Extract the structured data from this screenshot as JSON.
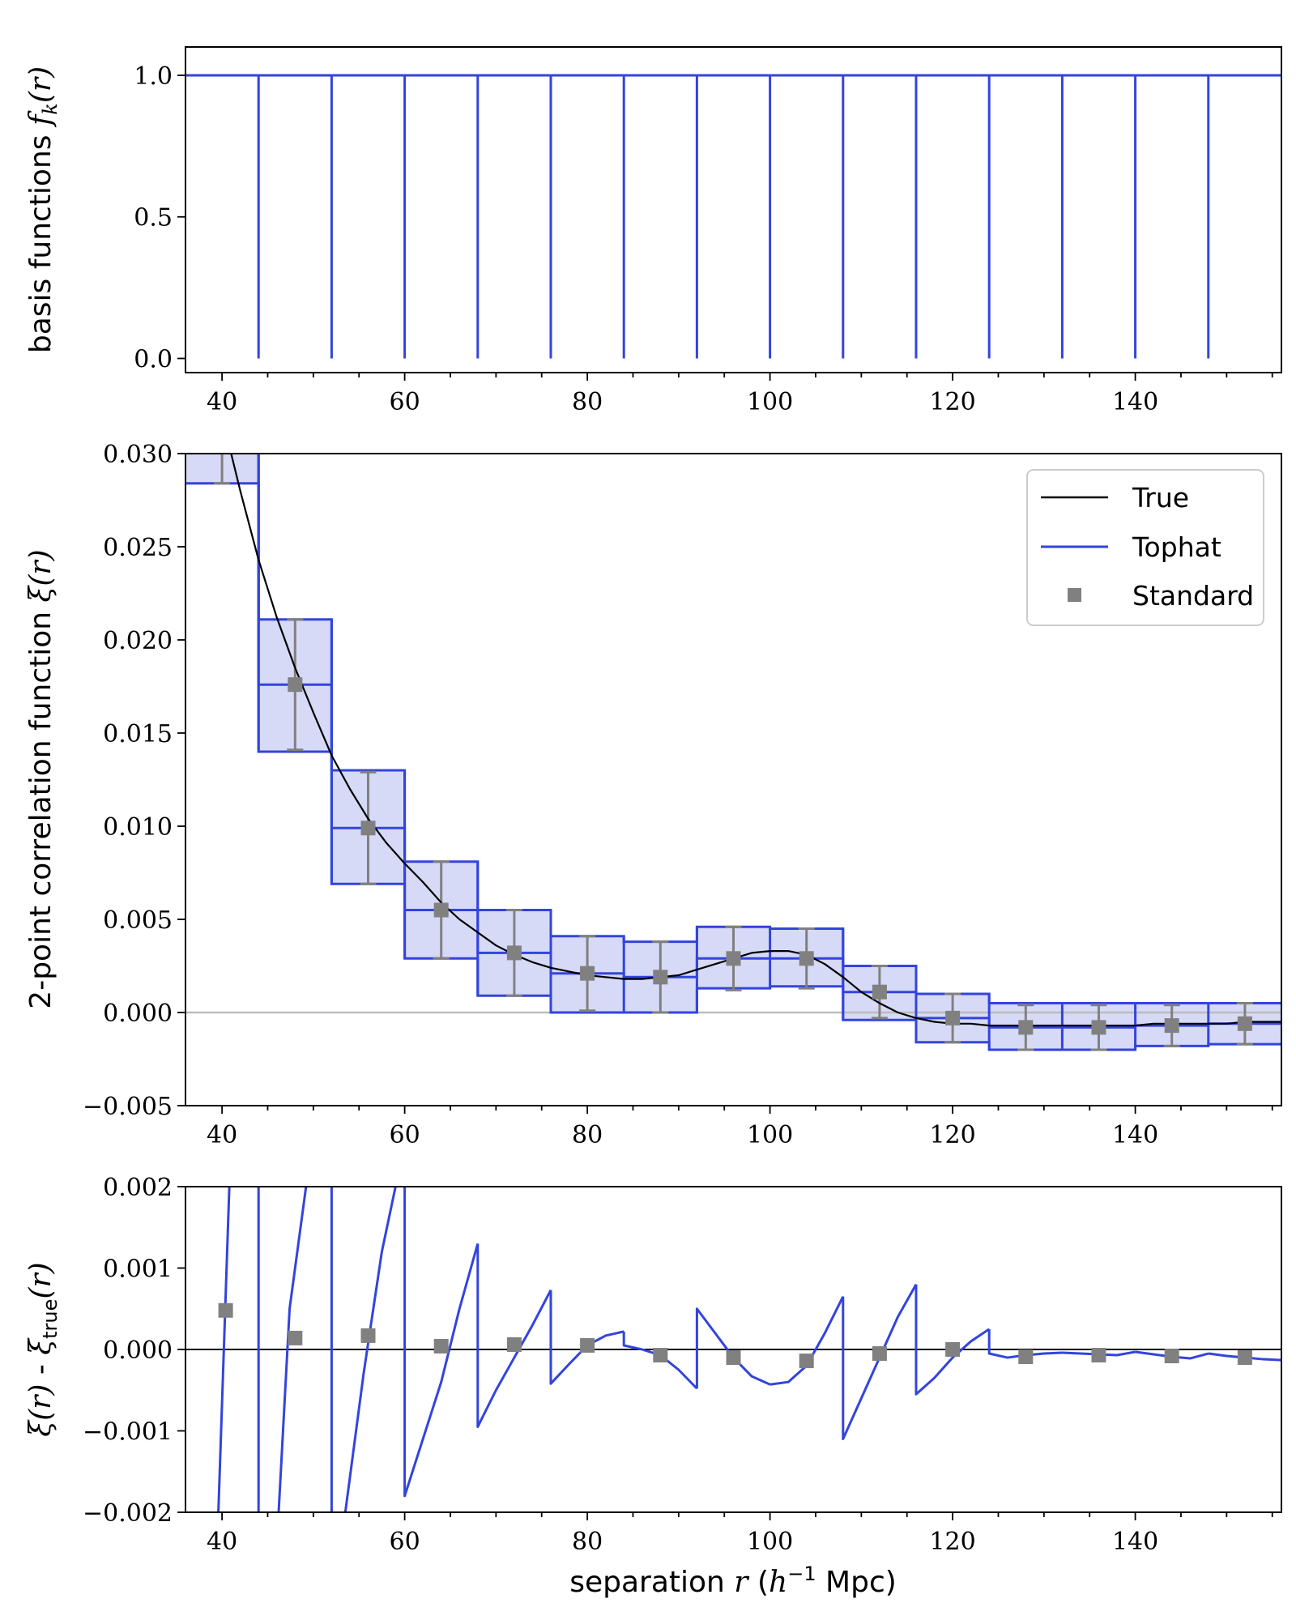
{
  "colors": {
    "tophat": "#3344dd",
    "tophat_fill": "#d6daf6",
    "standard": "#808080",
    "true": "#000000",
    "zero_line_middle": "#bbbbbb"
  },
  "labels": {
    "xlabel_pre": "separation ",
    "xlabel_var": "r",
    "xlabel_unit_open": " (",
    "xlabel_h": "h",
    "xlabel_exp": "−1",
    "xlabel_unit_close": " Mpc)",
    "top_ylabel_pre": "basis functions ",
    "top_ylabel_f": "f",
    "top_ylabel_sub": "k",
    "top_ylabel_arg": "(r)",
    "mid_ylabel_pre": "2-point correlation function ",
    "mid_ylabel_var": "ξ(r)",
    "bot_ylabel_a": "ξ(r)",
    "bot_ylabel_mid": " - ",
    "bot_ylabel_xi": "ξ",
    "bot_ylabel_sub": "true",
    "bot_ylabel_arg": "(r)"
  },
  "legend": {
    "true": "True",
    "tophat": "Tophat",
    "standard": "Standard"
  },
  "chart_data": [
    {
      "type": "line",
      "panel": "basis-functions",
      "xlim": [
        36,
        156
      ],
      "ylim": [
        -0.05,
        1.1
      ],
      "xticks": [
        40,
        60,
        80,
        100,
        120,
        140
      ],
      "yticks": [
        0.0,
        0.5,
        1.0
      ],
      "xtick_labels": [
        "40",
        "60",
        "80",
        "100",
        "120",
        "140"
      ],
      "ytick_labels": [
        "0.0",
        "0.5",
        "1.0"
      ],
      "series": [
        {
          "kind": "tophat-basis",
          "level": 1.0,
          "bin_edges": [
            44,
            52,
            60,
            68,
            76,
            84,
            92,
            100,
            108,
            116,
            124,
            132,
            140,
            148
          ]
        }
      ]
    },
    {
      "type": "line",
      "panel": "correlation-function",
      "xlim": [
        36,
        156
      ],
      "ylim": [
        -0.005,
        0.03
      ],
      "xticks": [
        40,
        60,
        80,
        100,
        120,
        140
      ],
      "yticks": [
        -0.005,
        0.0,
        0.005,
        0.01,
        0.015,
        0.02,
        0.025,
        0.03
      ],
      "xtick_labels": [
        "40",
        "60",
        "80",
        "100",
        "120",
        "140"
      ],
      "ytick_labels": [
        "−0.005",
        "0.000",
        "0.005",
        "0.010",
        "0.015",
        "0.020",
        "0.025",
        "0.030"
      ],
      "legend_position": "top-right",
      "series": [
        {
          "name": "True",
          "kind": "curve",
          "x": [
            40,
            42,
            44,
            46,
            48,
            50,
            52,
            54,
            56,
            58,
            60,
            62,
            64,
            66,
            68,
            70,
            72,
            74,
            76,
            78,
            80,
            82,
            84,
            86,
            88,
            90,
            92,
            94,
            96,
            98,
            100,
            102,
            104,
            106,
            108,
            110,
            112,
            114,
            116,
            118,
            120,
            122,
            124,
            126,
            128,
            130,
            132,
            134,
            136,
            138,
            140,
            142,
            144,
            146,
            148,
            150,
            152,
            154,
            156
          ],
          "y": [
            0.032,
            0.028,
            0.0243,
            0.0212,
            0.0185,
            0.0161,
            0.0138,
            0.012,
            0.0104,
            0.0091,
            0.008,
            0.007,
            0.0059,
            0.005,
            0.0043,
            0.0036,
            0.0031,
            0.0027,
            0.0024,
            0.0022,
            0.002,
            0.0019,
            0.0018,
            0.0018,
            0.0019,
            0.002,
            0.0023,
            0.0026,
            0.0029,
            0.0032,
            0.0033,
            0.0033,
            0.0031,
            0.0026,
            0.0019,
            0.0011,
            0.0005,
            0.0,
            -0.0003,
            -0.0005,
            -0.0006,
            -0.0006,
            -0.0007,
            -0.0007,
            -0.0007,
            -0.0007,
            -0.0007,
            -0.0007,
            -0.0007,
            -0.0007,
            -0.0007,
            -0.0006,
            -0.0006,
            -0.0006,
            -0.0006,
            -0.0006,
            -0.0005,
            -0.0005,
            -0.0005
          ]
        },
        {
          "name": "Tophat",
          "kind": "steps-with-band",
          "bin_edges": [
            36,
            44,
            52,
            60,
            68,
            76,
            84,
            92,
            100,
            108,
            116,
            124,
            132,
            140,
            148,
            156
          ],
          "values": [
            0.0318,
            0.0176,
            0.0099,
            0.0055,
            0.0032,
            0.0021,
            0.0019,
            0.0029,
            0.0029,
            0.0011,
            -0.0003,
            -0.0008,
            -0.0008,
            -0.0007,
            -0.0006
          ],
          "upper": [
            0.0352,
            0.0211,
            0.013,
            0.0081,
            0.0055,
            0.0041,
            0.0038,
            0.0046,
            0.0045,
            0.0025,
            0.001,
            0.0005,
            0.0005,
            0.0005,
            0.0005
          ],
          "lower": [
            0.0284,
            0.014,
            0.0069,
            0.0029,
            0.0009,
            0.0,
            0.0,
            0.0013,
            0.0014,
            -0.0004,
            -0.0016,
            -0.002,
            -0.002,
            -0.0018,
            -0.0017
          ]
        },
        {
          "name": "Standard",
          "kind": "points-with-errorbars",
          "x": [
            40,
            48,
            56,
            64,
            72,
            80,
            88,
            96,
            104,
            112,
            120,
            128,
            136,
            144,
            152
          ],
          "y": [
            0.0318,
            0.0176,
            0.0099,
            0.0055,
            0.0032,
            0.0021,
            0.0019,
            0.0029,
            0.0029,
            0.0011,
            -0.0003,
            -0.0008,
            -0.0008,
            -0.0007,
            -0.0006
          ],
          "yerr": [
            0.0034,
            0.0035,
            0.003,
            0.0026,
            0.0023,
            0.002,
            0.0019,
            0.0017,
            0.0016,
            0.0014,
            0.0013,
            0.0012,
            0.0012,
            0.0011,
            0.0011
          ]
        }
      ]
    },
    {
      "type": "line",
      "panel": "residuals",
      "xlim": [
        36,
        156
      ],
      "ylim": [
        -0.002,
        0.002
      ],
      "xticks": [
        40,
        60,
        80,
        100,
        120,
        140
      ],
      "yticks": [
        -0.002,
        -0.001,
        0.0,
        0.001,
        0.002
      ],
      "xtick_labels": [
        "40",
        "60",
        "80",
        "100",
        "120",
        "140"
      ],
      "ytick_labels": [
        "−0.002",
        "−0.001",
        "0.000",
        "0.001",
        "0.002"
      ],
      "series": [
        {
          "name": "Tophat",
          "kind": "segments",
          "segments": [
            [
              [
                39.6,
                -0.002
              ],
              [
                40.8,
                0.002
              ]
            ],
            [
              [
                44,
                -0.002
              ],
              [
                44,
                0.002
              ]
            ],
            [
              [
                46.2,
                -0.002
              ],
              [
                47.4,
                0.0005
              ],
              [
                49.2,
                0.002
              ]
            ],
            [
              [
                52,
                0.002
              ],
              [
                52,
                -0.002
              ]
            ],
            [
              [
                53.5,
                -0.002
              ],
              [
                55.5,
                -0.0003
              ],
              [
                57.5,
                0.0012
              ],
              [
                59.0,
                0.002
              ]
            ],
            [
              [
                60,
                0.002
              ],
              [
                60,
                -0.0018
              ],
              [
                62,
                -0.0011
              ],
              [
                64,
                -0.0004
              ],
              [
                66,
                0.0005
              ],
              [
                68,
                0.0013
              ]
            ],
            [
              [
                68,
                0.0013
              ],
              [
                68,
                -0.00095
              ],
              [
                70,
                -0.0005
              ],
              [
                72,
                -0.0001
              ],
              [
                74,
                0.0003
              ],
              [
                76,
                0.00073
              ]
            ],
            [
              [
                76,
                0.00073
              ],
              [
                76,
                -0.00042
              ],
              [
                78,
                -0.00018
              ],
              [
                80,
                5e-05
              ],
              [
                82,
                0.00017
              ],
              [
                84,
                0.00022
              ]
            ],
            [
              [
                84,
                0.00022
              ],
              [
                84,
                5e-05
              ],
              [
                86,
                0.0
              ],
              [
                88,
                -7e-05
              ],
              [
                90,
                -0.00025
              ],
              [
                92,
                -0.00048
              ]
            ],
            [
              [
                92,
                -0.00048
              ],
              [
                92,
                0.0005
              ],
              [
                94,
                0.0002
              ],
              [
                96,
                -0.0001
              ],
              [
                98,
                -0.00033
              ],
              [
                100,
                -0.00043
              ]
            ],
            [
              [
                100,
                -0.00043
              ],
              [
                102,
                -0.0004
              ],
              [
                104,
                -0.0002
              ],
              [
                106,
                0.0002
              ],
              [
                108,
                0.00065
              ]
            ],
            [
              [
                108,
                0.00065
              ],
              [
                108,
                -0.0011
              ],
              [
                110,
                -0.0006
              ],
              [
                112,
                -0.0001
              ],
              [
                114,
                0.0004
              ],
              [
                116,
                0.0008
              ]
            ],
            [
              [
                116,
                0.0008
              ],
              [
                116,
                -0.00055
              ],
              [
                118,
                -0.00035
              ],
              [
                120,
                -0.0001
              ],
              [
                122,
                0.0001
              ],
              [
                124,
                0.00025
              ]
            ],
            [
              [
                124,
                0.00025
              ],
              [
                124,
                -5e-05
              ],
              [
                126,
                -0.0001
              ],
              [
                128,
                -7e-05
              ],
              [
                130,
                -5e-05
              ],
              [
                132,
                -4e-05
              ]
            ],
            [
              [
                132,
                -4e-05
              ],
              [
                134,
                -5e-05
              ],
              [
                136,
                -6e-05
              ],
              [
                138,
                -7e-05
              ],
              [
                140,
                -3e-05
              ]
            ],
            [
              [
                140,
                -3e-05
              ],
              [
                142,
                -6e-05
              ],
              [
                144,
                -9e-05
              ],
              [
                146,
                -0.00011
              ],
              [
                148,
                -5e-05
              ]
            ],
            [
              [
                148,
                -5e-05
              ],
              [
                150,
                -8e-05
              ],
              [
                152,
                -0.0001
              ],
              [
                154,
                -0.00012
              ],
              [
                156,
                -0.00013
              ]
            ]
          ]
        },
        {
          "name": "Standard",
          "kind": "points",
          "x": [
            40.4,
            48,
            56,
            64,
            72,
            80,
            88,
            96,
            104,
            112,
            120,
            128,
            136,
            144,
            152
          ],
          "y": [
            0.00048,
            0.00014,
            0.00017,
            4e-05,
            6e-05,
            5e-05,
            -7e-05,
            -0.0001,
            -0.00014,
            -5e-05,
            0.0,
            -9e-05,
            -7e-05,
            -8e-05,
            -0.0001
          ]
        },
        {
          "kind": "zero-line",
          "y": 0.0
        }
      ]
    }
  ]
}
